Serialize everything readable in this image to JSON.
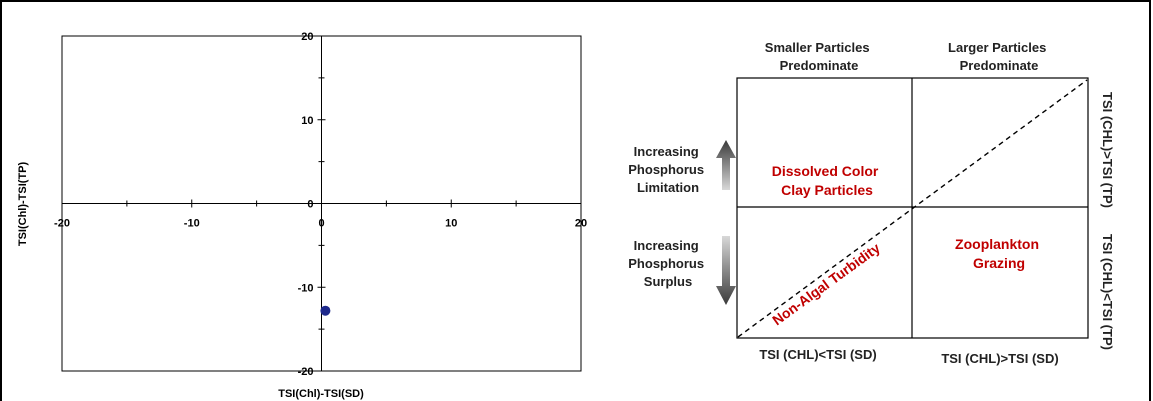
{
  "chart_data": {
    "type": "scatter",
    "xlabel": "TSI(Chl)-TSI(SD)",
    "ylabel": "TSI(Chl)-TSI(TP)",
    "xlim": [
      -20,
      20
    ],
    "ylim": [
      -20,
      20
    ],
    "x_ticks": [
      "-20",
      "-10",
      "0",
      "10",
      "20"
    ],
    "y_ticks": [
      "20",
      "10",
      "0",
      "-10",
      "-20"
    ],
    "grid": false,
    "points": [
      {
        "x": 0.3,
        "y": -12.8
      }
    ],
    "point_color": "#1f2a8c"
  },
  "diagram": {
    "col_headers": [
      [
        "Smaller Particles",
        "Predominate"
      ],
      [
        "Larger Particles",
        "Predominate"
      ]
    ],
    "upper_left": [
      "Dissolved Color",
      "Clay Particles"
    ],
    "lower_right": [
      "Zooplankton",
      "Grazing"
    ],
    "diagonal_label": "Non-Algal Turbidity",
    "left_top": [
      "Increasing",
      "Phosphorus",
      "Limitation"
    ],
    "left_bottom": [
      "Increasing",
      "Phosphorus",
      "Surplus"
    ],
    "bottom_left": "TSI (CHL)<TSI (SD)",
    "bottom_right": "TSI (CHL)>TSI (SD)",
    "right_top": "TSI (CHL)>TSI (TP)",
    "right_bottom": "TSI (CHL)<TSI (TP)",
    "region_text_color": "#c00000"
  }
}
